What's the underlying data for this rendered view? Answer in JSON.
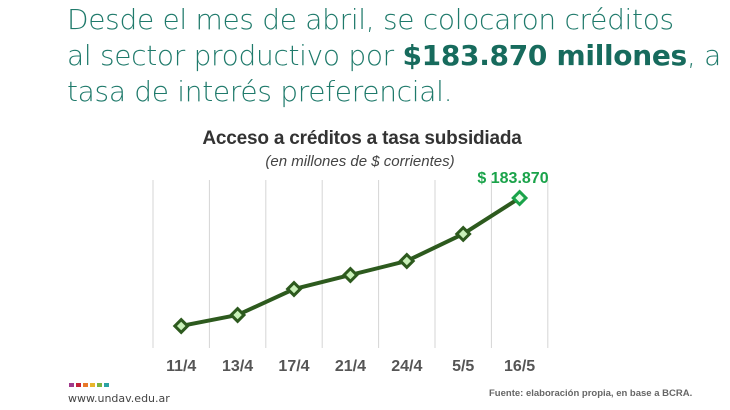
{
  "headline": {
    "line1": "Desde el mes de abril, se colocaron créditos",
    "line2_pre": "al sector productivo por ",
    "line2_bold": "$183.870 millones",
    "line2_post": ", a",
    "line3": "tasa de interés preferencial."
  },
  "colors": {
    "headline": "#1f7a6b",
    "line": "#2d5a1e",
    "marker_fill": "#c8f0b8",
    "last_marker": "#1aa34a",
    "callout": "#1aa34a",
    "gridline": "#d5d5d5"
  },
  "chart_data": {
    "type": "line",
    "title": "Acceso a créditos a tasa subsidiada",
    "subtitle": "(en millones de $ corrientes)",
    "xlabel": "",
    "ylabel": "",
    "categories": [
      "11/4",
      "13/4",
      "17/4",
      "21/4",
      "24/4",
      "5/5",
      "16/5"
    ],
    "series": [
      {
        "name": "Créditos a tasa subsidiada",
        "values": [
          27000,
          40500,
          72300,
          89500,
          106700,
          139800,
          183870
        ]
      }
    ],
    "annotations": [
      {
        "category": "16/5",
        "text": "$ 183.870"
      }
    ],
    "grid": {
      "vertical": true,
      "horizontal": false
    },
    "legend": "none"
  },
  "footer": {
    "logo_colors": [
      "#a03a8c",
      "#c4213a",
      "#e9782a",
      "#e8b52b",
      "#7bb442",
      "#2aa3a3"
    ],
    "site": "www.undav.edu.ar",
    "source": "Fuente: elaboración propia, en base a BCRA."
  }
}
